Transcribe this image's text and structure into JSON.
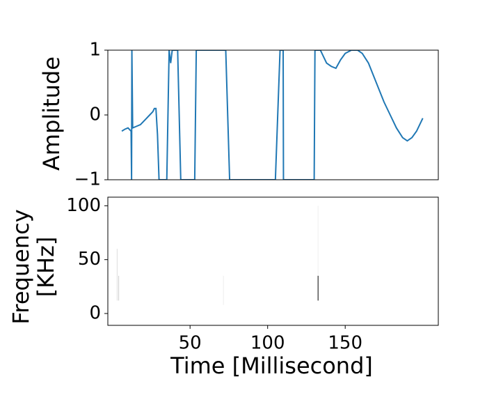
{
  "chart_data": [
    {
      "type": "line",
      "ylabel": "Amplitude",
      "xlim": [
        -3,
        210
      ],
      "ylim": [
        -1,
        1
      ],
      "yticks": [
        {
          "value": -1,
          "label": "−1"
        },
        0,
        1
      ],
      "x": [
        6,
        8,
        10,
        12,
        12.3,
        12.5,
        13,
        15,
        18,
        20,
        22,
        24,
        26,
        27,
        28,
        29,
        30,
        35,
        36.5,
        37.5,
        38.5,
        40,
        42,
        44,
        53,
        54,
        73,
        75.5,
        105,
        108,
        110,
        110.2,
        130,
        130.5,
        134,
        136,
        138,
        141,
        144,
        147,
        150,
        154,
        158,
        161,
        165,
        170,
        175,
        179,
        183,
        187,
        190,
        193,
        196,
        200
      ],
      "series": [
        {
          "color": "#1f77b4",
          "values": [
            -0.25,
            -0.22,
            -0.2,
            -0.25,
            -1,
            1,
            -0.2,
            -0.18,
            -0.15,
            -0.1,
            -0.05,
            0,
            0.05,
            0.1,
            0.1,
            -0.3,
            -1,
            -1,
            1,
            0.8,
            1,
            1,
            1,
            -1,
            -1,
            1,
            1,
            -1,
            -1,
            1,
            1,
            -1,
            -1,
            1,
            1,
            0.9,
            0.8,
            0.75,
            0.72,
            0.85,
            0.95,
            1,
            1,
            0.95,
            0.8,
            0.5,
            0.2,
            0,
            -0.2,
            -0.35,
            -0.4,
            -0.35,
            -0.25,
            -0.05
          ]
        }
      ]
    },
    {
      "type": "spectrogram",
      "ylabel": [
        "Frequency",
        "[KHz]"
      ],
      "xlabel": "Time [Millisecond]",
      "xlim": [
        -3,
        210
      ],
      "xticks": [
        50,
        100,
        150
      ],
      "ylim": [
        -11,
        108
      ],
      "yticks": [
        0,
        50,
        100
      ],
      "segments": [
        {
          "x": 3,
          "low": 12,
          "high": 60,
          "color": "#dddddd"
        },
        {
          "x": 4,
          "low": 12,
          "high": 35,
          "color": "#cccccc"
        },
        {
          "x": 71.5,
          "low": 8,
          "high": 35,
          "color": "#eeeeee"
        },
        {
          "x": 132.5,
          "low": 35,
          "high": 100,
          "color": "#eeeeee"
        },
        {
          "x": 132.5,
          "low": 12,
          "high": 35,
          "color": "#000000"
        }
      ]
    }
  ]
}
